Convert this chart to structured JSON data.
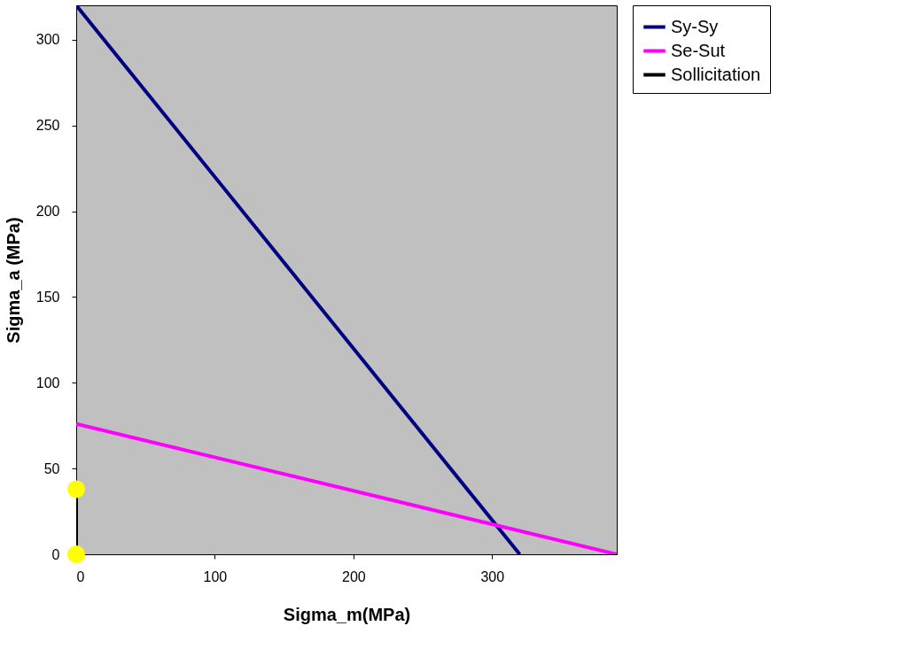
{
  "chart_data": {
    "type": "line",
    "xlabel": "Sigma_m(MPa)",
    "ylabel": "Sigma_a (MPa)",
    "xlim": [
      0,
      390
    ],
    "ylim": [
      0,
      320
    ],
    "xticks": [
      0,
      100,
      200,
      300
    ],
    "yticks": [
      0,
      50,
      100,
      150,
      200,
      250,
      300
    ],
    "grid": false,
    "legend": "right",
    "series": [
      {
        "name": "Sy-Sy",
        "color": "#000080",
        "x": [
          0,
          320
        ],
        "values": [
          320,
          0
        ],
        "marker": "none"
      },
      {
        "name": "Se-Sut",
        "color": "#ff00ff",
        "x": [
          0,
          390
        ],
        "values": [
          76,
          0
        ],
        "marker": "none"
      },
      {
        "name": "Sollicitation",
        "color": "#000000",
        "x": [
          0,
          0
        ],
        "values": [
          0,
          38
        ],
        "marker": "circle"
      }
    ]
  }
}
